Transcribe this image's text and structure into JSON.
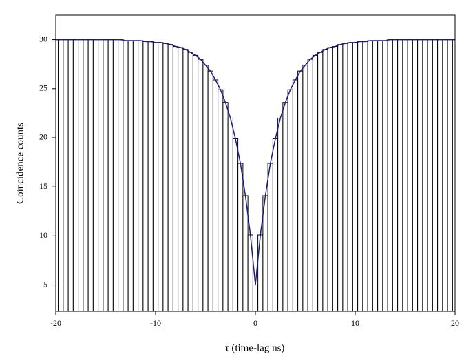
{
  "chart_data": {
    "type": "bar",
    "x_label": "τ (time-lag ns)",
    "y_label": "Coincidence counts",
    "x": [
      -20,
      -19.5,
      -19,
      -18.5,
      -18,
      -17.5,
      -17,
      -16.5,
      -16,
      -15.5,
      -15,
      -14.5,
      -14,
      -13.5,
      -13,
      -12.5,
      -12,
      -11.5,
      -11,
      -10.5,
      -10,
      -9.5,
      -9,
      -8.5,
      -8,
      -7.5,
      -7,
      -6.5,
      -6,
      -5.5,
      -5,
      -4.5,
      -4,
      -3.5,
      -3,
      -2.5,
      -2,
      -1.5,
      -1,
      -0.5,
      0,
      0.5,
      1,
      1.5,
      2,
      2.5,
      3,
      3.5,
      4,
      4.5,
      5,
      5.5,
      6,
      6.5,
      7,
      7.5,
      8,
      8.5,
      9,
      9.5,
      10,
      10.5,
      11,
      11.5,
      12,
      12.5,
      13,
      13.5,
      14,
      14.5,
      15,
      15.5,
      16,
      16.5,
      17,
      17.5,
      18,
      18.5,
      19,
      19.5,
      20
    ],
    "series": [
      {
        "type": "bar",
        "color": "#000000",
        "values": [
          30,
          30,
          30,
          30,
          30,
          30,
          30,
          30,
          30,
          30,
          30,
          30,
          30,
          30,
          29.9,
          29.9,
          29.9,
          29.9,
          29.8,
          29.8,
          29.7,
          29.7,
          29.6,
          29.5,
          29.3,
          29.2,
          29.0,
          28.7,
          28.4,
          28.0,
          27.4,
          26.8,
          25.9,
          24.9,
          23.6,
          22.0,
          19.9,
          17.4,
          14.1,
          10.1,
          5,
          10.1,
          14.1,
          17.4,
          19.9,
          22.0,
          23.6,
          24.9,
          25.9,
          26.8,
          27.4,
          28.0,
          28.4,
          28.7,
          29.0,
          29.2,
          29.3,
          29.5,
          29.6,
          29.7,
          29.7,
          29.8,
          29.8,
          29.9,
          29.9,
          29.9,
          29.9,
          30,
          30,
          30,
          30,
          30,
          30,
          30,
          30,
          30,
          30,
          30,
          30,
          30,
          30
        ]
      },
      {
        "type": "line",
        "color": "#1c1c80",
        "values": [
          30,
          30,
          30,
          30,
          30,
          30,
          30,
          30,
          30,
          30,
          30,
          30,
          30,
          30,
          29.9,
          29.9,
          29.9,
          29.9,
          29.8,
          29.8,
          29.7,
          29.7,
          29.6,
          29.5,
          29.3,
          29.2,
          29.0,
          28.7,
          28.4,
          28.0,
          27.4,
          26.8,
          25.9,
          24.9,
          23.6,
          22.0,
          19.9,
          17.4,
          14.1,
          10.1,
          5,
          10.1,
          14.1,
          17.4,
          19.9,
          22.0,
          23.6,
          24.9,
          25.9,
          26.8,
          27.4,
          28.0,
          28.4,
          28.7,
          29.0,
          29.2,
          29.3,
          29.5,
          29.6,
          29.7,
          29.7,
          29.8,
          29.8,
          29.9,
          29.9,
          29.9,
          29.9,
          30,
          30,
          30,
          30,
          30,
          30,
          30,
          30,
          30,
          30,
          30,
          30,
          30,
          30
        ]
      }
    ],
    "xlim": [
      -20,
      20
    ],
    "xticks": [
      -20,
      -10,
      0,
      10,
      20
    ],
    "ylim": [
      2.3,
      32.5
    ],
    "yticks": [
      5,
      10,
      15,
      20,
      25,
      30
    ]
  }
}
